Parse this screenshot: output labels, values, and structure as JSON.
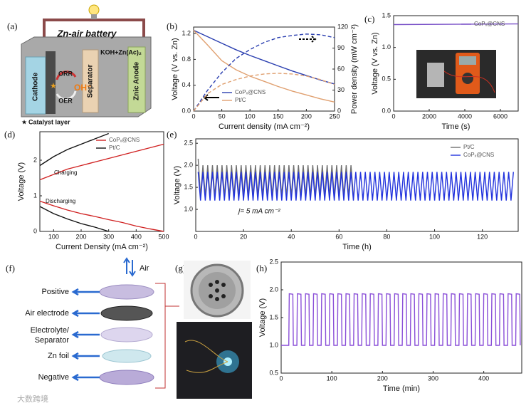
{
  "panels": [
    "(a)",
    "(b)",
    "(c)",
    "(d)",
    "(e)",
    "(f)",
    "(g)",
    "(h)"
  ],
  "battery": {
    "title": "Zn-air battery",
    "electrolyte": "KOH+Zn(Ac)₂",
    "cathode": "Cathode",
    "separator": "Separator",
    "anode": "Znic Anode",
    "orr": "ORR",
    "oer": "OER",
    "ion": "OH⁻",
    "catalyst": "Catalyst layer"
  },
  "cell": {
    "air": "Air",
    "positive": "Positive",
    "air_electrode": "Air electrode",
    "electrolyte": [
      "Electrolyte/",
      "Separator"
    ],
    "zn_foil": "Zn foil",
    "negative": "Negative"
  },
  "watermark": "大数跨境",
  "chart_data": [
    {
      "type": "line",
      "xlabel": "Current density (mA cm⁻²)",
      "ylabel": "Voltage (V vs. Zn)",
      "y2label": "Power density (mW cm⁻²)",
      "x": [
        0,
        25,
        50,
        75,
        100,
        125,
        150,
        175,
        200,
        225,
        250
      ],
      "xlim": [
        0,
        250
      ],
      "xticks": [
        0,
        50,
        100,
        150,
        200,
        250
      ],
      "ylim": [
        0,
        1.3
      ],
      "yticks": [
        {
          "value": 0,
          "label": "0.0"
        },
        0.4,
        0.8,
        1.2
      ],
      "y2lim": [
        0,
        120
      ],
      "y2ticks": [
        0,
        30,
        60,
        90,
        120
      ],
      "legend": "lower-left",
      "series": [
        {
          "name": "CoPₓ@CNS",
          "color": "#2b3fb0",
          "values": [
            1.25,
            1.15,
            1.05,
            0.95,
            0.86,
            0.78,
            0.7,
            0.62,
            0.55,
            0.48,
            0.42
          ]
        },
        {
          "name": "Pt/C",
          "color": "#e0a070",
          "values": [
            1.25,
            1.02,
            0.78,
            0.64,
            0.54,
            0.46,
            0.38,
            0.31,
            0.25,
            0.19,
            0.14
          ]
        },
        {
          "name": "CoPₓ@CNS",
          "color": "#2b3fb0",
          "dash": true,
          "axis": "y2",
          "values": [
            0,
            30,
            55,
            75,
            88,
            98,
            105,
            108,
            110,
            109,
            105
          ]
        },
        {
          "name": "Pt/C",
          "color": "#e0a070",
          "dash": true,
          "axis": "y2",
          "values": [
            0,
            25,
            38,
            45,
            50,
            53,
            54,
            53,
            50,
            45,
            38
          ]
        }
      ]
    },
    {
      "type": "line",
      "xlabel": "Time (s)",
      "ylabel": "Voltage (V vs. Zn)",
      "x": [
        0,
        7000
      ],
      "xlim": [
        0,
        7000
      ],
      "xticks": [
        0,
        2000,
        4000,
        6000
      ],
      "ylim": [
        0,
        1.5
      ],
      "yticks": [
        {
          "value": 0,
          "label": "0.0"
        },
        0.5,
        {
          "value": 1,
          "label": "1.0"
        },
        1.5
      ],
      "legend": "upper-center",
      "series": [
        {
          "name": "CoPₓ@CNS",
          "color": "#7a52c8",
          "values": [
            1.36,
            1.37
          ]
        }
      ]
    },
    {
      "type": "line",
      "xlabel": "Current Density (mA cm⁻²)",
      "ylabel": "Voltage (V)",
      "x": [
        50,
        100,
        150,
        200,
        250,
        300,
        350,
        400,
        450,
        500
      ],
      "xlim": [
        50,
        500
      ],
      "xticks": [
        100,
        200,
        300,
        400,
        500
      ],
      "ylim": [
        0,
        2.8
      ],
      "yticks": [
        0,
        1,
        2
      ],
      "legend": "upper-right",
      "annotations": [
        "Charging",
        "Discharging"
      ],
      "series": [
        {
          "name": "CoPₓ@CNS",
          "color": "#d02020",
          "values": [
            1.45,
            1.6,
            1.75,
            1.85,
            1.95,
            2.05,
            2.15,
            2.25,
            2.35,
            2.45
          ]
        },
        {
          "name": "Pt/C",
          "color": "#111111",
          "values": [
            1.85,
            2.1,
            2.3,
            2.45,
            2.6,
            2.75,
            null,
            null,
            null,
            null
          ]
        },
        {
          "name": "CoPₓ@CNS",
          "color": "#d02020",
          "values": [
            0.85,
            0.72,
            0.6,
            0.5,
            0.42,
            0.33,
            0.25,
            0.15,
            0.07,
            0
          ]
        },
        {
          "name": "Pt/C",
          "color": "#111111",
          "values": [
            0.7,
            0.5,
            0.35,
            0.22,
            0.12,
            0,
            null,
            null,
            null,
            null
          ]
        }
      ]
    },
    {
      "type": "line",
      "xlabel": "Time (h)",
      "ylabel": "Voltage (V)",
      "xlim": [
        0,
        135
      ],
      "xticks": [
        0,
        20,
        40,
        60,
        80,
        100,
        120
      ],
      "ylim": [
        0.5,
        2.6
      ],
      "yticks": [
        {
          "value": 1,
          "label": "1.0"
        },
        1.5,
        {
          "value": 2,
          "label": "2.0"
        },
        2.5
      ],
      "legend": "upper-right",
      "annotations": [
        "j= 5 mA cm⁻²"
      ],
      "series": [
        {
          "name": "Pt/C",
          "color": "#707070",
          "x": [
            1,
            2,
            3,
            4,
            5,
            6,
            7,
            8,
            9,
            10,
            11,
            12,
            13,
            14,
            15,
            16,
            17,
            18,
            19,
            20,
            21,
            22,
            23,
            24,
            25,
            26,
            27,
            28,
            29,
            30,
            31,
            32,
            33,
            34,
            35,
            36,
            37,
            38,
            39,
            40,
            41,
            42,
            43,
            44,
            45,
            46,
            47,
            48,
            49,
            50,
            51,
            52,
            53,
            54,
            55,
            56,
            57,
            58,
            59,
            60,
            61,
            62,
            63,
            64,
            65,
            66
          ],
          "values": [
            2.15,
            1.3,
            2.0,
            1.3,
            2.0,
            1.3,
            2.0,
            1.3,
            2.0,
            1.3,
            2.0,
            1.3,
            2.0,
            1.3,
            2.0,
            1.3,
            2.0,
            1.3,
            2.0,
            1.3,
            2.0,
            1.3,
            2.0,
            1.3,
            2.0,
            1.3,
            2.0,
            1.3,
            2.0,
            1.3,
            2.0,
            1.3,
            2.0,
            1.3,
            2.0,
            1.3,
            2.0,
            1.3,
            2.0,
            1.3,
            2.0,
            1.3,
            2.0,
            1.3,
            2.0,
            1.3,
            2.0,
            1.3,
            2.0,
            1.3,
            2.0,
            1.3,
            2.0,
            1.3,
            2.0,
            1.3,
            2.0,
            1.3,
            2.0,
            1.3,
            2.0,
            1.3,
            2.0,
            1.3,
            2.0,
            1.3
          ]
        },
        {
          "name": "CoPₓ@CNS",
          "color": "#2233dd",
          "x": [
            1,
            2,
            3,
            4,
            5,
            6,
            7,
            8,
            9,
            10,
            11,
            12,
            13,
            14,
            15,
            16,
            17,
            18,
            19,
            20,
            21,
            22,
            23,
            24,
            25,
            26,
            27,
            28,
            29,
            30,
            31,
            32,
            33,
            34,
            35,
            36,
            37,
            38,
            39,
            40,
            41,
            42,
            43,
            44,
            45,
            46,
            47,
            48,
            49,
            50,
            51,
            52,
            53,
            54,
            55,
            56,
            57,
            58,
            59,
            60,
            61,
            62,
            63,
            64,
            65,
            66,
            67,
            68,
            69,
            70,
            71,
            72,
            73,
            74,
            75,
            76,
            77,
            78,
            79,
            80,
            81,
            82,
            83,
            84,
            85,
            86,
            87,
            88,
            89,
            90,
            91,
            92,
            93,
            94,
            95,
            96,
            97,
            98,
            99,
            100,
            101,
            102,
            103,
            104,
            105,
            106,
            107,
            108,
            109,
            110,
            111,
            112,
            113,
            114,
            115,
            116,
            117,
            118,
            119,
            120,
            121,
            122,
            123,
            124,
            125,
            126,
            127,
            128,
            129,
            130,
            131,
            132,
            133
          ],
          "values": [
            1.85,
            1.2,
            1.85,
            1.2,
            1.85,
            1.2,
            1.85,
            1.2,
            1.85,
            1.2,
            1.85,
            1.2,
            1.85,
            1.2,
            1.85,
            1.2,
            1.85,
            1.2,
            1.85,
            1.2,
            1.85,
            1.2,
            1.85,
            1.2,
            1.85,
            1.2,
            1.85,
            1.2,
            1.85,
            1.2,
            1.85,
            1.2,
            1.85,
            1.2,
            1.85,
            1.2,
            1.85,
            1.2,
            1.85,
            1.2,
            1.85,
            1.2,
            1.85,
            1.2,
            1.85,
            1.2,
            1.85,
            1.2,
            1.85,
            1.2,
            1.85,
            1.2,
            1.85,
            1.2,
            1.85,
            1.2,
            1.85,
            1.2,
            1.85,
            1.2,
            1.85,
            1.2,
            1.85,
            1.2,
            1.85,
            1.2,
            1.85,
            1.2,
            1.85,
            1.2,
            1.85,
            1.2,
            1.85,
            1.2,
            1.85,
            1.2,
            1.85,
            1.2,
            1.85,
            1.2,
            1.85,
            1.2,
            1.85,
            1.2,
            1.85,
            1.2,
            1.85,
            1.2,
            1.85,
            1.2,
            1.85,
            1.2,
            1.85,
            1.2,
            1.85,
            1.2,
            1.85,
            1.2,
            1.85,
            1.2,
            1.85,
            1.2,
            1.85,
            1.2,
            1.85,
            1.2,
            1.85,
            1.2,
            1.85,
            1.2,
            1.85,
            1.2,
            1.85,
            1.2,
            1.85,
            1.2,
            1.85,
            1.2,
            1.85,
            1.2,
            1.85,
            1.2,
            1.85,
            1.2,
            1.85,
            1.2,
            1.85,
            1.2,
            1.85,
            1.2,
            1.85,
            1.2,
            1.85
          ]
        }
      ]
    },
    {
      "type": "line",
      "xlabel": "Time (min)",
      "ylabel": "Voltage (V)",
      "xlim": [
        0,
        475
      ],
      "xticks": [
        0,
        100,
        200,
        300,
        400
      ],
      "ylim": [
        0.5,
        2.5
      ],
      "yticks": [
        0.5,
        {
          "value": 1,
          "label": "1.0"
        },
        1.5,
        {
          "value": 2,
          "label": "2.0"
        },
        2.5
      ],
      "x": [
        0,
        15,
        16,
        23,
        24,
        31,
        32,
        39,
        40,
        47,
        48,
        55,
        56,
        63,
        64,
        71,
        72,
        79,
        80,
        87,
        88,
        95,
        96,
        103,
        104,
        111,
        112,
        119,
        120,
        127,
        128,
        135,
        136,
        143,
        144,
        151,
        152,
        159,
        160,
        167,
        168,
        175,
        176,
        183,
        184,
        191,
        192,
        199,
        200,
        207,
        208,
        215,
        216,
        223,
        224,
        231,
        232,
        239,
        240,
        247,
        248,
        255,
        256,
        263,
        264,
        271,
        272,
        279,
        280,
        287,
        288,
        295,
        296,
        303,
        304,
        311,
        312,
        319,
        320,
        327,
        328,
        335,
        336,
        343,
        344,
        351,
        352,
        359,
        360,
        367,
        368,
        375,
        376,
        383,
        384,
        391,
        392,
        399,
        400,
        407,
        408,
        415,
        416,
        423,
        424,
        431,
        432,
        439,
        440,
        447,
        448,
        455,
        456,
        463,
        464,
        471,
        472
      ],
      "series": [
        {
          "color": "#8a4fd8",
          "values": [
            1.0,
            1.0,
            1.93,
            1.92,
            1.0,
            1.0,
            1.93,
            1.92,
            1.0,
            1.0,
            1.93,
            1.92,
            1.0,
            1.0,
            1.93,
            1.92,
            1.0,
            1.0,
            1.93,
            1.92,
            1.0,
            1.0,
            1.93,
            1.92,
            1.0,
            1.0,
            1.93,
            1.92,
            1.0,
            1.0,
            1.93,
            1.92,
            1.0,
            1.0,
            1.93,
            1.92,
            1.0,
            1.0,
            1.93,
            1.92,
            1.0,
            1.0,
            1.93,
            1.92,
            1.0,
            1.0,
            1.93,
            1.92,
            1.0,
            1.0,
            1.93,
            1.92,
            1.0,
            1.0,
            1.93,
            1.92,
            1.0,
            1.0,
            1.93,
            1.92,
            1.0,
            1.0,
            1.93,
            1.92,
            1.0,
            1.0,
            1.93,
            1.92,
            1.0,
            1.0,
            1.93,
            1.92,
            1.0,
            1.0,
            1.93,
            1.92,
            1.0,
            1.0,
            1.93,
            1.92,
            1.0,
            1.0,
            1.93,
            1.92,
            1.0,
            1.0,
            1.93,
            1.92,
            1.0,
            1.0,
            1.93,
            1.92,
            1.0,
            1.0,
            1.93,
            1.92,
            1.0,
            1.0,
            1.93,
            1.92,
            1.0,
            1.0,
            1.93,
            1.92,
            1.0,
            1.0,
            1.93,
            1.92,
            1.0,
            1.0,
            1.93,
            1.92,
            1.0,
            1.0,
            1.93,
            1.92,
            1.0
          ]
        }
      ]
    }
  ]
}
